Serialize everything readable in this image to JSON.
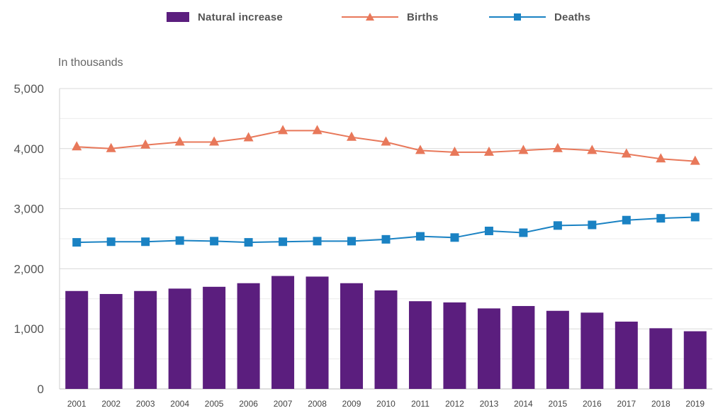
{
  "chart_data": {
    "type": "bar",
    "unit_label": "In thousands",
    "categories": [
      "2001",
      "2002",
      "2003",
      "2004",
      "2005",
      "2006",
      "2007",
      "2008",
      "2009",
      "2010",
      "2011",
      "2012",
      "2013",
      "2014",
      "2015",
      "2016",
      "2017",
      "2018",
      "2019"
    ],
    "ylim": [
      0,
      5000
    ],
    "yticks": [
      0,
      1000,
      2000,
      3000,
      4000,
      5000
    ],
    "ytick_labels": [
      "0",
      "1,000",
      "2,000",
      "3,000",
      "4,000",
      "5,000"
    ],
    "grid": true,
    "legend_position": "top",
    "series": [
      {
        "name": "Natural increase",
        "type": "bar",
        "color": "#5b1e7e",
        "values": [
          1630,
          1580,
          1630,
          1670,
          1700,
          1760,
          1880,
          1870,
          1760,
          1640,
          1460,
          1440,
          1340,
          1380,
          1300,
          1270,
          1120,
          1010,
          960
        ]
      },
      {
        "name": "Births",
        "type": "line",
        "marker": "triangle",
        "color": "#e8785a",
        "values": [
          4030,
          4000,
          4060,
          4110,
          4110,
          4180,
          4300,
          4300,
          4190,
          4110,
          3970,
          3940,
          3940,
          3970,
          4000,
          3970,
          3910,
          3830,
          3790
        ]
      },
      {
        "name": "Deaths",
        "type": "line",
        "marker": "square",
        "color": "#1a82c3",
        "values": [
          2440,
          2450,
          2450,
          2470,
          2460,
          2440,
          2450,
          2460,
          2460,
          2490,
          2540,
          2520,
          2630,
          2600,
          2720,
          2730,
          2810,
          2840,
          2860
        ]
      }
    ]
  }
}
